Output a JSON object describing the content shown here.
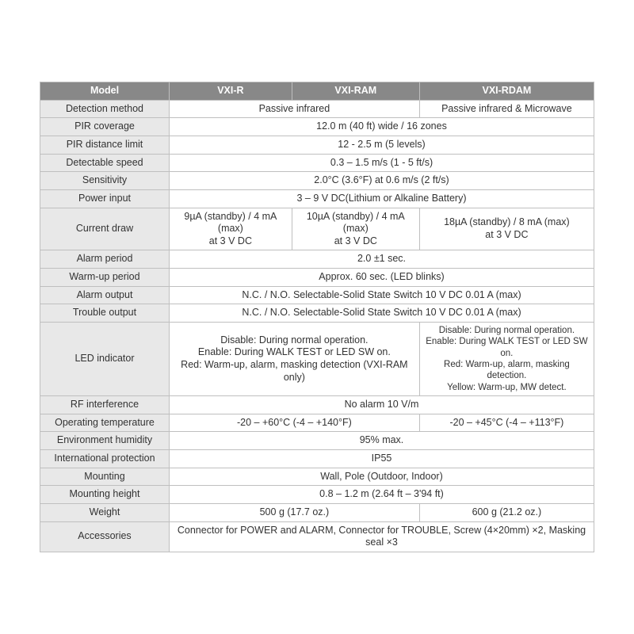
{
  "colors": {
    "header_bg": "#888888",
    "header_text": "#ffffff",
    "label_bg": "#e8e8e8",
    "border": "#bfbfbf",
    "text": "#333333",
    "bg": "#ffffff"
  },
  "header": {
    "model": "Model",
    "c1": "VXI-R",
    "c2": "VXI-RAM",
    "c3": "VXI-RDAM"
  },
  "rows": {
    "detection_method": {
      "label": "Detection method",
      "span2": "Passive infrared",
      "c3": "Passive infrared & Microwave"
    },
    "pir_coverage": {
      "label": "PIR coverage",
      "all": "12.0 m (40 ft) wide / 16 zones"
    },
    "pir_distance": {
      "label": "PIR distance limit",
      "all": "12 - 2.5 m (5 levels)"
    },
    "detectable_speed": {
      "label": "Detectable speed",
      "all": "0.3 – 1.5 m/s (1 - 5 ft/s)"
    },
    "sensitivity": {
      "label": "Sensitivity",
      "all": "2.0°C (3.6°F) at 0.6 m/s (2 ft/s)"
    },
    "power_input": {
      "label": "Power input",
      "all": "3 – 9 V DC(Lithium or Alkaline Battery)"
    },
    "current_draw": {
      "label": "Current draw",
      "c1": "9µA (standby) / 4 mA (max)\nat 3 V DC",
      "c2": "10µA (standby) / 4 mA (max)\nat 3 V DC",
      "c3": "18µA (standby) / 8 mA (max)\nat 3 V DC"
    },
    "alarm_period": {
      "label": "Alarm period",
      "all": "2.0 ±1 sec."
    },
    "warmup": {
      "label": "Warm-up period",
      "all": "Approx. 60 sec. (LED blinks)"
    },
    "alarm_output": {
      "label": "Alarm output",
      "all": "N.C. / N.O. Selectable-Solid State Switch 10 V DC 0.01 A (max)"
    },
    "trouble_output": {
      "label": "Trouble output",
      "all": "N.C. / N.O. Selectable-Solid State Switch 10 V DC 0.01 A (max)"
    },
    "led": {
      "label": "LED indicator",
      "span2": "Disable: During normal operation.\nEnable: During WALK TEST or LED SW on.\nRed: Warm-up, alarm, masking detection (VXI-RAM only)",
      "c3": "Disable: During normal operation.\nEnable: During WALK TEST or LED SW on.\nRed: Warm-up, alarm, masking detection.\nYellow: Warm-up, MW detect."
    },
    "rf": {
      "label": "RF interference",
      "all": "No alarm 10 V/m"
    },
    "op_temp": {
      "label": "Operating temperature",
      "span2": "-20 – +60°C (-4 – +140°F)",
      "c3": "-20 – +45°C (-4 – +113°F)"
    },
    "humidity": {
      "label": "Environment humidity",
      "all": "95% max."
    },
    "protection": {
      "label": "International protection",
      "all": "IP55"
    },
    "mounting": {
      "label": "Mounting",
      "all": "Wall, Pole (Outdoor, Indoor)"
    },
    "mounting_height": {
      "label": "Mounting height",
      "all": "0.8 – 1.2 m (2.64 ft – 3'94 ft)"
    },
    "weight": {
      "label": "Weight",
      "span2": "500 g (17.7 oz.)",
      "c3": "600 g (21.2 oz.)"
    },
    "accessories": {
      "label": "Accessories",
      "all": "Connector for POWER and ALARM, Connector for TROUBLE, Screw (4×20mm) ×2, Masking seal ×3"
    }
  }
}
